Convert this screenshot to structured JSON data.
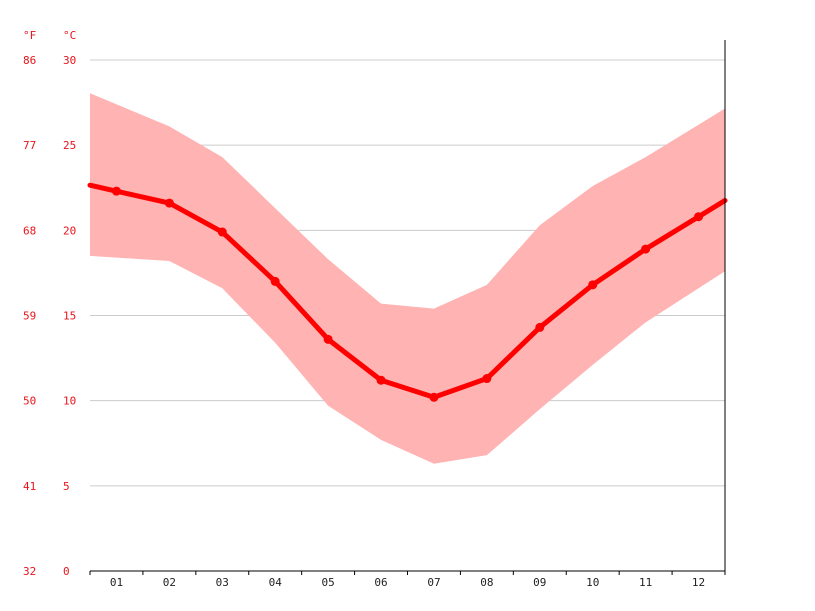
{
  "chart_data": {
    "type": "line",
    "title": "",
    "xlabel": "",
    "ylabel": "",
    "categories": [
      "01",
      "02",
      "03",
      "04",
      "05",
      "06",
      "07",
      "08",
      "09",
      "10",
      "11",
      "12"
    ],
    "series": [
      {
        "name": "",
        "values": [
          22.3,
          21.6,
          19.9,
          17.0,
          13.6,
          11.2,
          10.2,
          11.3,
          14.3,
          16.8,
          18.9,
          20.8
        ]
      }
    ],
    "range_band": {
      "max": [
        27.4,
        26.1,
        24.3,
        21.3,
        18.3,
        15.7,
        15.4,
        16.8,
        20.3,
        22.6,
        24.3,
        26.2
      ],
      "min": [
        18.4,
        18.2,
        16.6,
        13.4,
        9.7,
        7.7,
        6.3,
        6.8,
        9.5,
        12.1,
        14.6,
        16.6
      ]
    },
    "y_left_unit": "°F",
    "y_right_unit": "°C",
    "y_ticks_f": [
      "32",
      "41",
      "50",
      "59",
      "68",
      "77",
      "86"
    ],
    "y_ticks_c": [
      "0",
      "5",
      "10",
      "15",
      "20",
      "25",
      "30"
    ],
    "ylim": [
      0,
      30
    ],
    "grid": true,
    "colors": {
      "line": "#ff0000",
      "band": "#ffb3b3",
      "axis_label": "#e8141b",
      "grid": "#cccccc"
    }
  }
}
